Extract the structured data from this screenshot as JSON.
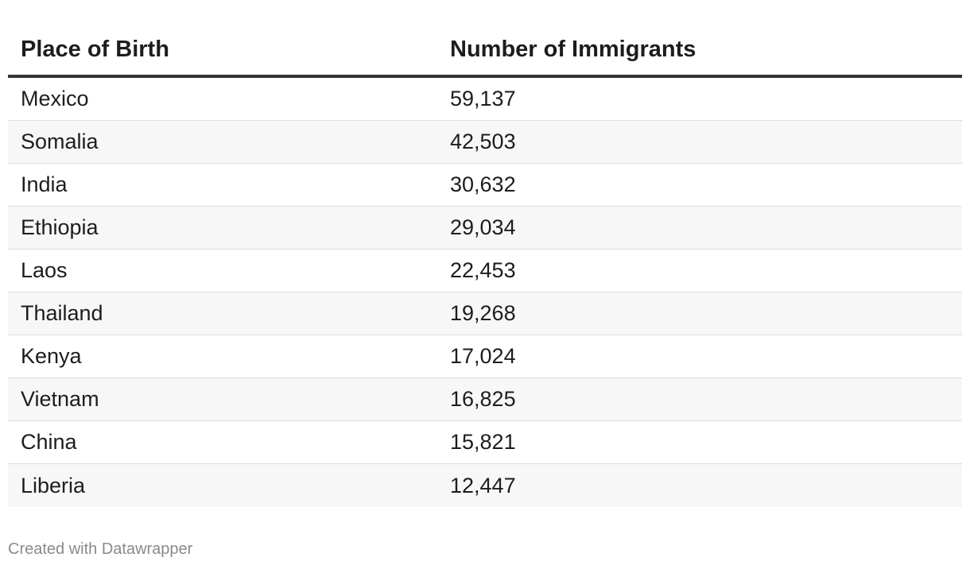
{
  "chart_data": {
    "type": "table",
    "columns": [
      "Place of Birth",
      "Number of Immigrants"
    ],
    "rows": [
      [
        "Mexico",
        "59,137"
      ],
      [
        "Somalia",
        "42,503"
      ],
      [
        "India",
        "30,632"
      ],
      [
        "Ethiopia",
        "29,034"
      ],
      [
        "Laos",
        "22,453"
      ],
      [
        "Thailand",
        "19,268"
      ],
      [
        "Kenya",
        "17,024"
      ],
      [
        "Vietnam",
        "16,825"
      ],
      [
        "China",
        "15,821"
      ],
      [
        "Liberia",
        "12,447"
      ]
    ]
  },
  "footer": {
    "credit": "Created with Datawrapper"
  },
  "colors": {
    "header_rule": "#333333",
    "stripe": "#f7f7f7",
    "row_divider": "#dddddd",
    "text": "#1d1d1d",
    "credit_text": "#8a8a8a"
  }
}
